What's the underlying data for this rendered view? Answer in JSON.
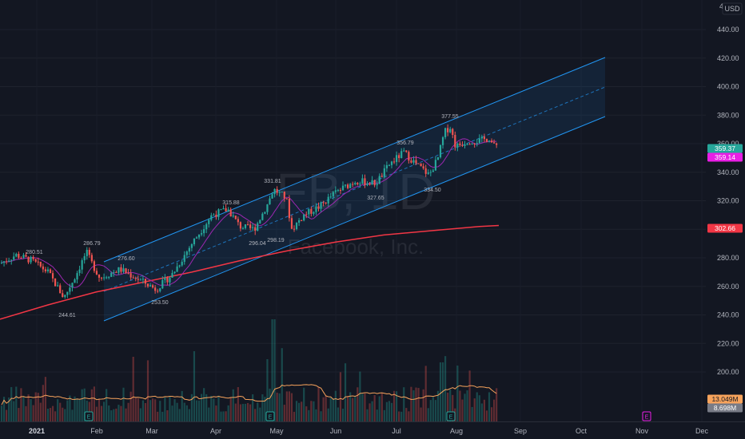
{
  "chart_data": {
    "type": "candlestick",
    "symbol_watermark": "FB, 1D",
    "company_watermark": "Facebook, Inc.",
    "currency": "USD",
    "y_ticks": [
      "200.00",
      "220.00",
      "240.00",
      "260.00",
      "280.00",
      "300.00",
      "320.00",
      "340.00",
      "360.00",
      "380.00",
      "400.00",
      "420.00",
      "440.00"
    ],
    "y_top_cut": "46",
    "x_ticks": [
      "2021",
      "Feb",
      "Mar",
      "Apr",
      "May",
      "Jun",
      "Jul",
      "Aug",
      "Sep",
      "Oct",
      "Nov",
      "Dec"
    ],
    "high_low_labels": [
      "280.51",
      "286.79",
      "276.60",
      "244.61",
      "253.50",
      "315.88",
      "296.04",
      "331.81",
      "298.19",
      "356.79",
      "327.65",
      "377.55",
      "334.50"
    ],
    "price_badges": {
      "last_price": "359.37",
      "indicator_value": "359.14",
      "ma_value": "302.66",
      "volume_value": "13.049M",
      "volume_ma_value": "8.698M"
    },
    "earnings_marker": "E",
    "colors": {
      "background": "#131722",
      "up": "#26a69a",
      "down": "#ef5350",
      "ma_line": "#f23645",
      "short_ma": "#9c27b0",
      "channel": "#2196f3",
      "volume_ma": "#f7a35c",
      "badge_last": "#26a69a",
      "badge_indicator": "#e91ee5",
      "badge_ma": "#f23645",
      "badge_volume": "#f7a35c",
      "badge_volume_ma": "#787b86"
    }
  }
}
